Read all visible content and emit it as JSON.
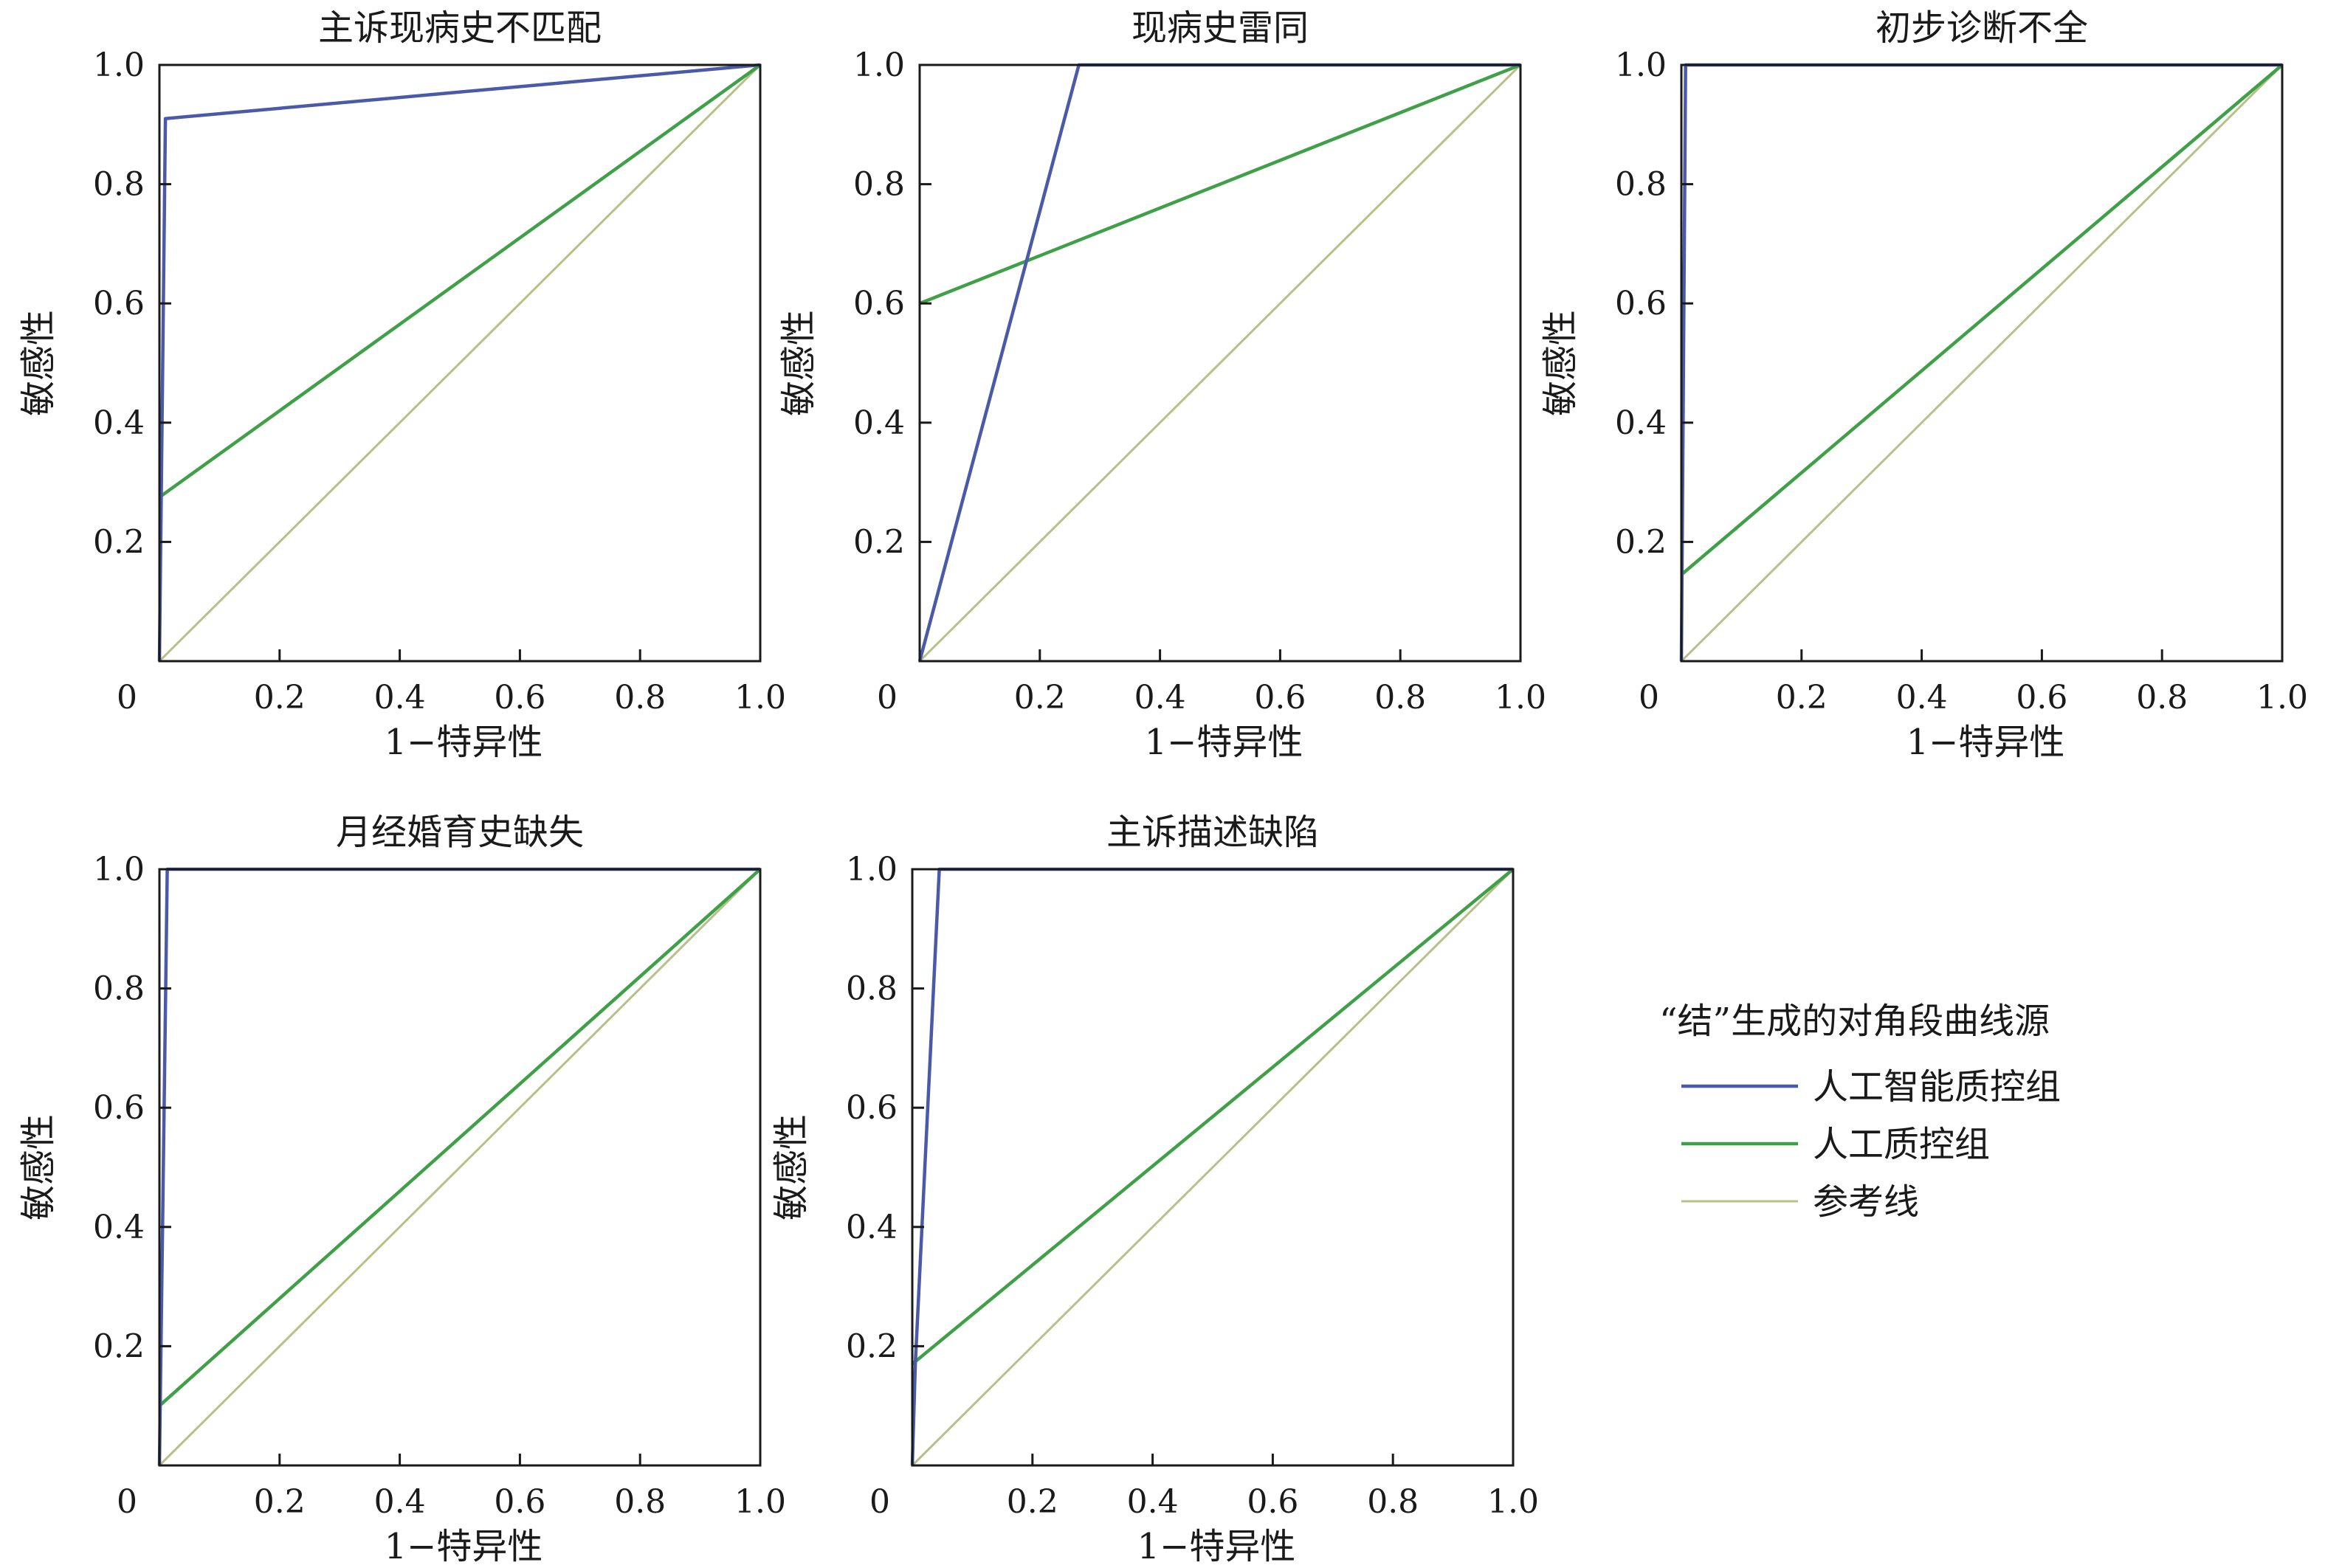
{
  "chart_data": [
    {
      "type": "line",
      "title": "主诉现病史不匹配",
      "xlabel": "1−特异性",
      "ylabel": "敏感性",
      "xlim": [
        0,
        1
      ],
      "ylim": [
        0,
        1
      ],
      "x_ticks": [
        "0",
        "0.2",
        "0.4",
        "0.6",
        "0.8",
        "1.0"
      ],
      "y_ticks": [
        "0.2",
        "0.4",
        "0.6",
        "0.8",
        "1.0"
      ],
      "series": [
        {
          "name": "人工智能质控组",
          "points": [
            [
              0,
              0
            ],
            [
              0.01,
              0.91
            ],
            [
              1,
              1
            ]
          ]
        },
        {
          "name": "人工质控组",
          "points": [
            [
              0,
              0.275
            ],
            [
              1,
              1
            ]
          ]
        },
        {
          "name": "参考线",
          "points": [
            [
              0,
              0
            ],
            [
              1,
              1
            ]
          ]
        }
      ]
    },
    {
      "type": "line",
      "title": "现病史雷同",
      "xlabel": "1−特异性",
      "ylabel": "敏感性",
      "xlim": [
        0,
        1
      ],
      "ylim": [
        0,
        1
      ],
      "x_ticks": [
        "0",
        "0.2",
        "0.4",
        "0.6",
        "0.8",
        "1.0"
      ],
      "y_ticks": [
        "0.2",
        "0.4",
        "0.6",
        "0.8",
        "1.0"
      ],
      "series": [
        {
          "name": "人工智能质控组",
          "points": [
            [
              0,
              0
            ],
            [
              0.265,
              1
            ],
            [
              1,
              1
            ]
          ]
        },
        {
          "name": "人工质控组",
          "points": [
            [
              0,
              0.6
            ],
            [
              1,
              1
            ]
          ]
        },
        {
          "name": "参考线",
          "points": [
            [
              0,
              0
            ],
            [
              1,
              1
            ]
          ]
        }
      ]
    },
    {
      "type": "line",
      "title": "初步诊断不全",
      "xlabel": "1−特异性",
      "ylabel": "敏感性",
      "xlim": [
        0,
        1
      ],
      "ylim": [
        0,
        1
      ],
      "x_ticks": [
        "0",
        "0.2",
        "0.4",
        "0.6",
        "0.8",
        "1.0"
      ],
      "y_ticks": [
        "0.2",
        "0.4",
        "0.6",
        "0.8",
        "1.0"
      ],
      "series": [
        {
          "name": "人工智能质控组",
          "points": [
            [
              0,
              0
            ],
            [
              0.007,
              1
            ],
            [
              1,
              1
            ]
          ]
        },
        {
          "name": "人工质控组",
          "points": [
            [
              0,
              0.145
            ],
            [
              1,
              1
            ]
          ]
        },
        {
          "name": "参考线",
          "points": [
            [
              0,
              0
            ],
            [
              1,
              1
            ]
          ]
        }
      ]
    },
    {
      "type": "line",
      "title": "月经婚育史缺失",
      "xlabel": "1−特异性",
      "ylabel": "敏感性",
      "xlim": [
        0,
        1
      ],
      "ylim": [
        0,
        1
      ],
      "x_ticks": [
        "0",
        "0.2",
        "0.4",
        "0.6",
        "0.8",
        "1.0"
      ],
      "y_ticks": [
        "0.2",
        "0.4",
        "0.6",
        "0.8",
        "1.0"
      ],
      "series": [
        {
          "name": "人工智能质控组",
          "points": [
            [
              0,
              0
            ],
            [
              0.013,
              1
            ],
            [
              1,
              1
            ]
          ]
        },
        {
          "name": "人工质控组",
          "points": [
            [
              0,
              0.1
            ],
            [
              1,
              1
            ]
          ]
        },
        {
          "name": "参考线",
          "points": [
            [
              0,
              0
            ],
            [
              1,
              1
            ]
          ]
        }
      ]
    },
    {
      "type": "line",
      "title": "主诉描述缺陷",
      "xlabel": "1−特异性",
      "ylabel": "敏感性",
      "xlim": [
        0,
        1
      ],
      "ylim": [
        0,
        1
      ],
      "x_ticks": [
        "0",
        "0.2",
        "0.4",
        "0.6",
        "0.8",
        "1.0"
      ],
      "y_ticks": [
        "0.2",
        "0.4",
        "0.6",
        "0.8",
        "1.0"
      ],
      "series": [
        {
          "name": "人工智能质控组",
          "points": [
            [
              0,
              0
            ],
            [
              0.005,
              0.17
            ],
            [
              0.045,
              1
            ],
            [
              1,
              1
            ]
          ]
        },
        {
          "name": "人工质控组",
          "points": [
            [
              0,
              0.17
            ],
            [
              1,
              1
            ]
          ]
        },
        {
          "name": "参考线",
          "points": [
            [
              0,
              0
            ],
            [
              1,
              1
            ]
          ]
        }
      ]
    }
  ],
  "legend": {
    "title": "“结”生成的对角段曲线源",
    "items": [
      {
        "label": "人工智能质控组",
        "color": "#4a5aa8"
      },
      {
        "label": "人工质控组",
        "color": "#3fa047"
      },
      {
        "label": "参考线",
        "color": "#b8c08a"
      }
    ]
  }
}
